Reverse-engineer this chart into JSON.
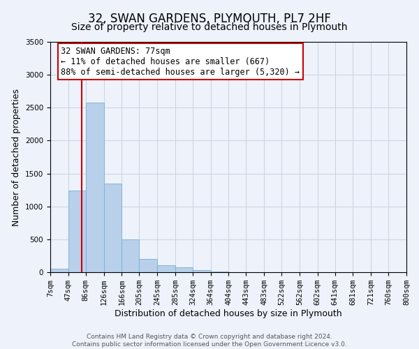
{
  "title": "32, SWAN GARDENS, PLYMOUTH, PL7 2HF",
  "subtitle": "Size of property relative to detached houses in Plymouth",
  "xlabel": "Distribution of detached houses by size in Plymouth",
  "ylabel": "Number of detached properties",
  "footer_line1": "Contains HM Land Registry data © Crown copyright and database right 2024.",
  "footer_line2": "Contains public sector information licensed under the Open Government Licence v3.0.",
  "annotation_line1": "32 SWAN GARDENS: 77sqm",
  "annotation_line2": "← 11% of detached houses are smaller (667)",
  "annotation_line3": "88% of semi-detached houses are larger (5,320) →",
  "bin_edges": [
    7,
    47,
    86,
    126,
    166,
    205,
    245,
    285,
    324,
    364,
    404,
    443,
    483,
    522,
    562,
    602,
    641,
    681,
    721,
    760,
    800
  ],
  "bin_counts": [
    50,
    1240,
    2580,
    1350,
    500,
    200,
    110,
    75,
    30,
    10,
    5,
    2,
    1,
    0,
    0,
    0,
    0,
    0,
    0,
    0
  ],
  "property_size": 77,
  "ylim": [
    0,
    3500
  ],
  "bar_color": "#b8d0ea",
  "bar_edge_color": "#7aaed4",
  "vline_color": "#cc0000",
  "grid_color": "#c8d4e0",
  "background_color": "#edf2fb",
  "annotation_box_edge": "#cc0000",
  "annotation_box_fill": "white",
  "title_fontsize": 12,
  "subtitle_fontsize": 10,
  "label_fontsize": 9,
  "tick_fontsize": 7.5,
  "annotation_fontsize": 8.5,
  "footer_fontsize": 6.5
}
